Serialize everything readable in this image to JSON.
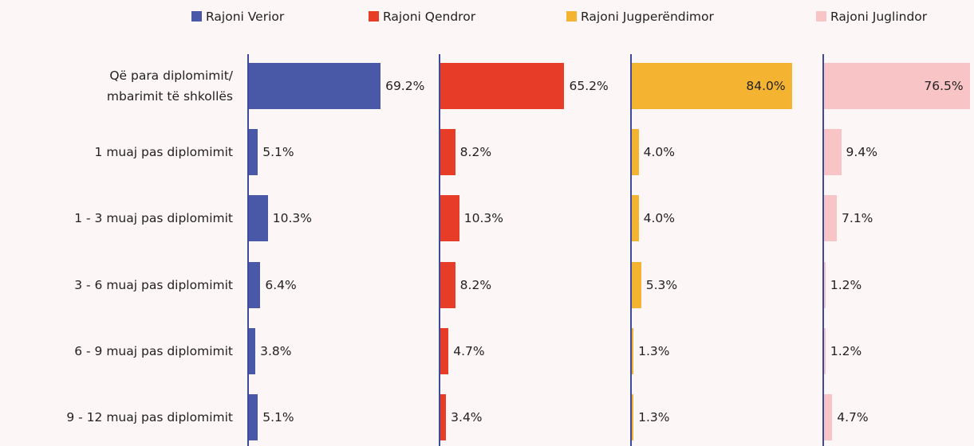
{
  "chart_data": {
    "type": "bar",
    "orientation": "horizontal",
    "categories": [
      "Që para diplomimit/\nmbarimit të shkollës",
      "1 muaj pas diplomimit",
      "1 - 3 muaj pas diplomimit",
      "3 - 6 muaj pas diplomimit",
      "6 - 9 muaj pas diplomimit",
      "9 - 12 muaj pas diplomimit"
    ],
    "xlim": [
      0,
      100
    ],
    "series": [
      {
        "name": "Rajoni Verior",
        "color": "#4a58a8",
        "values": [
          69.2,
          5.1,
          10.3,
          6.4,
          3.8,
          5.1
        ],
        "value_labels": [
          "69.2%",
          "5.1%",
          "10.3%",
          "6.4%",
          "3.8%",
          "5.1%"
        ]
      },
      {
        "name": "Rajoni Qendror",
        "color": "#e63c28",
        "values": [
          65.2,
          8.2,
          10.3,
          8.2,
          4.7,
          3.4
        ],
        "value_labels": [
          "65.2%",
          "8.2%",
          "10.3%",
          "8.2%",
          "4.7%",
          "3.4%"
        ]
      },
      {
        "name": "Rajoni Jugperëndimor",
        "color": "#f4b431",
        "values": [
          84.0,
          4.0,
          4.0,
          5.3,
          1.3,
          1.3
        ],
        "value_labels": [
          "84.0%",
          "4.0%",
          "4.0%",
          "5.3%",
          "1.3%",
          "1.3%"
        ]
      },
      {
        "name": "Rajoni Juglindor",
        "color": "#f9c4c6",
        "values": [
          76.5,
          9.4,
          7.1,
          1.2,
          1.2,
          4.7
        ],
        "value_labels": [
          "76.5%",
          "9.4%",
          "7.1%",
          "1.2%",
          "1.2%",
          "4.7%"
        ]
      }
    ]
  }
}
